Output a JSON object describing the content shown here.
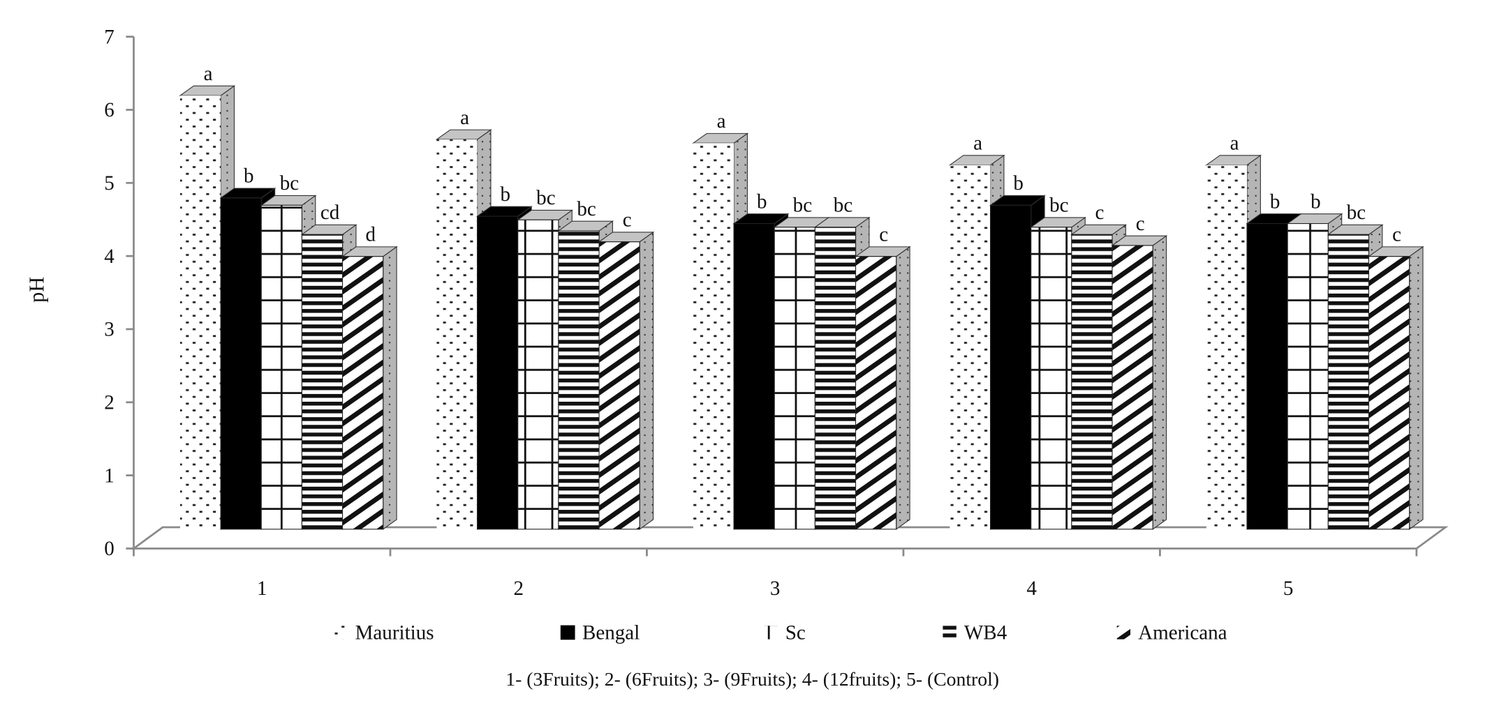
{
  "chart_data": {
    "type": "bar",
    "style": "3d-clustered-column",
    "title": "",
    "xlabel": "1- (3Fruits); 2- (6Fruits); 3- (9Fruits); 4- (12fruits); 5- (Control)",
    "ylabel": "pH",
    "ylim": [
      0,
      7
    ],
    "yticks": [
      "0",
      "1",
      "2",
      "3",
      "4",
      "5",
      "6",
      "7"
    ],
    "categories": [
      "1",
      "2",
      "3",
      "4",
      "5"
    ],
    "grid": false,
    "legend_position": "bottom",
    "series": [
      {
        "name": "Mauritius",
        "pattern": "dotted",
        "values": [
          6.3,
          5.7,
          5.65,
          5.35,
          5.35
        ],
        "letters": [
          "a",
          "a",
          "a",
          "a",
          "a"
        ]
      },
      {
        "name": "Bengal",
        "pattern": "solid-black",
        "values": [
          4.9,
          4.65,
          4.55,
          4.8,
          4.55
        ],
        "letters": [
          "b",
          "b",
          "b",
          "b",
          "b"
        ]
      },
      {
        "name": "Sc",
        "pattern": "grid",
        "values": [
          4.8,
          4.6,
          4.5,
          4.5,
          4.55
        ],
        "letters": [
          "bc",
          "bc",
          "bc",
          "bc",
          "b"
        ]
      },
      {
        "name": "WB4",
        "pattern": "horizontal-stripes",
        "values": [
          4.4,
          4.45,
          4.5,
          4.4,
          4.4
        ],
        "letters": [
          "cd",
          "bc",
          "bc",
          "c",
          "bc"
        ]
      },
      {
        "name": "Americana",
        "pattern": "diagonal-stripes",
        "values": [
          4.1,
          4.3,
          4.1,
          4.25,
          4.1
        ],
        "letters": [
          "d",
          "c",
          "c",
          "c",
          "c"
        ]
      }
    ]
  }
}
